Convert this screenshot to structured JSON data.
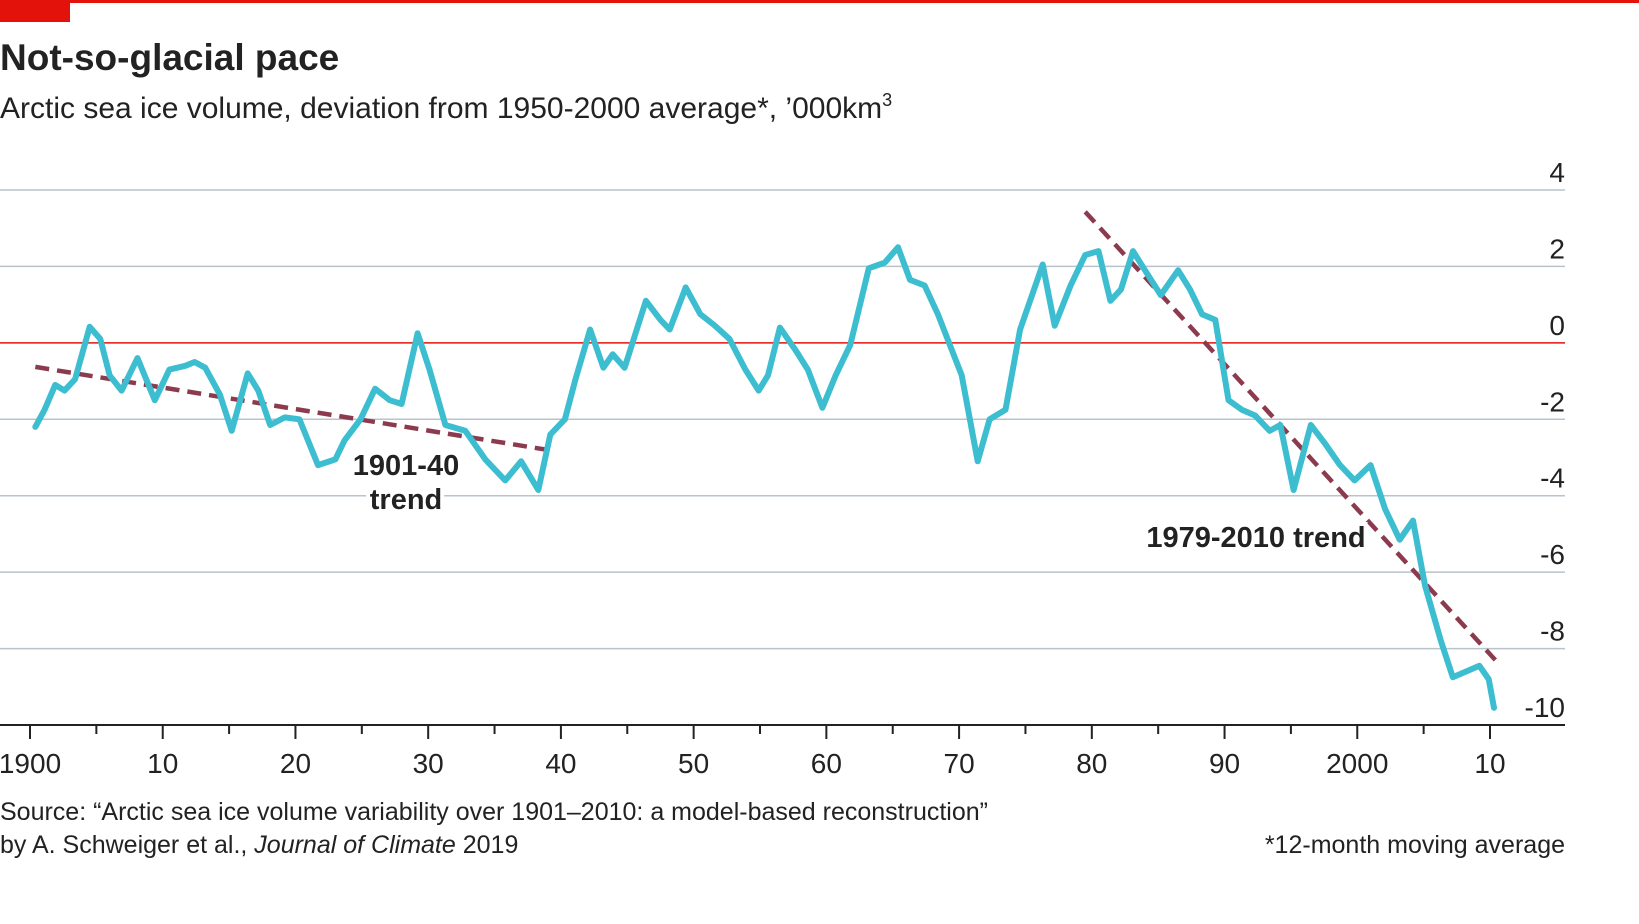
{
  "chart_data": {
    "type": "line",
    "title": "Not-so-glacial pace",
    "subtitle": "Arctic sea ice volume, deviation from 1950-2000 average*, ’000km",
    "subtitle_sup": "3",
    "xlim": [
      1900,
      2010
    ],
    "ylim": [
      -10,
      4
    ],
    "xticks": [
      {
        "value": 1900,
        "label": "1900"
      },
      {
        "value": 1910,
        "label": "10"
      },
      {
        "value": 1920,
        "label": "20"
      },
      {
        "value": 1930,
        "label": "30"
      },
      {
        "value": 1940,
        "label": "40"
      },
      {
        "value": 1950,
        "label": "50"
      },
      {
        "value": 1960,
        "label": "60"
      },
      {
        "value": 1970,
        "label": "70"
      },
      {
        "value": 1980,
        "label": "80"
      },
      {
        "value": 1990,
        "label": "90"
      },
      {
        "value": 2000,
        "label": "2000"
      },
      {
        "value": 2010,
        "label": "10"
      }
    ],
    "xminorticks": [
      1905,
      1915,
      1925,
      1935,
      1945,
      1955,
      1965,
      1975,
      1985,
      1995,
      2005
    ],
    "yticks": [
      4,
      2,
      0,
      -2,
      -4,
      -6,
      -8,
      -10
    ],
    "grid": true,
    "zero_line_color": "#e3120b",
    "series": [
      {
        "color": "#3dbdd0",
        "x": [
          1900.4,
          1901.1,
          1901.9,
          1902.6,
          1903.4,
          1904.5,
          1905.3,
          1906,
          1906.9,
          1908.1,
          1909.4,
          1910.5,
          1911.7,
          1912.4,
          1913.2,
          1914.3,
          1915.2,
          1916.4,
          1917.2,
          1918.1,
          1919.2,
          1920.3,
          1921.7,
          1923,
          1923.7,
          1924.9,
          1926,
          1927.1,
          1928,
          1929.2,
          1930.1,
          1931.3,
          1932.8,
          1934.3,
          1935.8,
          1937,
          1938.3,
          1939.2,
          1940.3,
          1941.1,
          1942.2,
          1943.2,
          1943.9,
          1944.8,
          1946.4,
          1947.5,
          1948.2,
          1949.4,
          1950.5,
          1951.6,
          1952.7,
          1953.9,
          1954.9,
          1955.6,
          1956.5,
          1957.7,
          1958.6,
          1959.7,
          1960.7,
          1961.8,
          1963.2,
          1964.4,
          1965.4,
          1966.3,
          1967.4,
          1968.4,
          1969.3,
          1970.2,
          1971.4,
          1972.3,
          1973.5,
          1974.6,
          1976.3,
          1977.2,
          1978.4,
          1979.5,
          1980.5,
          1981.4,
          1982.2,
          1983.1,
          1984.1,
          1985.2,
          1986.5,
          1987.4,
          1988.3,
          1989.3,
          1990.3,
          1991.3,
          1992.3,
          1993.4,
          1994.2,
          1995.2,
          1996.5,
          1997.6,
          1998.7,
          1999.8,
          2001,
          2002.1,
          2003.2,
          2004.2,
          2005.1,
          2006.3,
          2007.2,
          2008.2,
          2009.2,
          2009.9,
          2010.3
        ],
        "values": [
          -2.2,
          -1.75,
          -1.1,
          -1.25,
          -0.95,
          0.42,
          0.1,
          -0.85,
          -1.25,
          -0.4,
          -1.5,
          -0.7,
          -0.6,
          -0.5,
          -0.65,
          -1.35,
          -2.3,
          -0.8,
          -1.25,
          -2.15,
          -1.95,
          -2.0,
          -3.2,
          -3.05,
          -2.55,
          -2.0,
          -1.2,
          -1.5,
          -1.6,
          0.25,
          -0.7,
          -2.15,
          -2.3,
          -3.05,
          -3.6,
          -3.1,
          -3.85,
          -2.4,
          -2.0,
          -0.95,
          0.35,
          -0.65,
          -0.3,
          -0.65,
          1.1,
          0.6,
          0.35,
          1.45,
          0.75,
          0.45,
          0.1,
          -0.7,
          -1.25,
          -0.85,
          0.4,
          -0.2,
          -0.7,
          -1.7,
          -0.85,
          -0.05,
          1.95,
          2.1,
          2.5,
          1.65,
          1.5,
          0.75,
          -0.05,
          -0.85,
          -3.1,
          -2.0,
          -1.75,
          0.35,
          2.05,
          0.45,
          1.5,
          2.3,
          2.4,
          1.1,
          1.4,
          2.4,
          1.85,
          1.25,
          1.9,
          1.4,
          0.75,
          0.6,
          -1.5,
          -1.75,
          -1.9,
          -2.3,
          -2.15,
          -3.85,
          -2.15,
          -2.65,
          -3.2,
          -3.6,
          -3.2,
          -4.35,
          -5.15,
          -4.65,
          -6.35,
          -7.8,
          -8.75,
          -8.6,
          -8.45,
          -8.8,
          -9.55
        ]
      }
    ],
    "trends": [
      {
        "label_lines": [
          "1901-40",
          "trend"
        ],
        "color": "#8c3b4e",
        "x": [
          1900.4,
          1939.0
        ],
        "values": [
          -0.63,
          -2.8
        ]
      },
      {
        "label_lines": [
          "1979-2010 trend"
        ],
        "color": "#8c3b4e",
        "x": [
          1979.5,
          2010.4
        ],
        "values": [
          3.43,
          -8.3
        ]
      }
    ],
    "source_line1": "Source: “Arctic sea ice volume variability over 1901–2010: a model-based reconstruction”",
    "source_line2": [
      "by A. Schweiger et al., ",
      "Journal of Climate",
      " 2019"
    ],
    "footnote": "*12-month moving average"
  }
}
